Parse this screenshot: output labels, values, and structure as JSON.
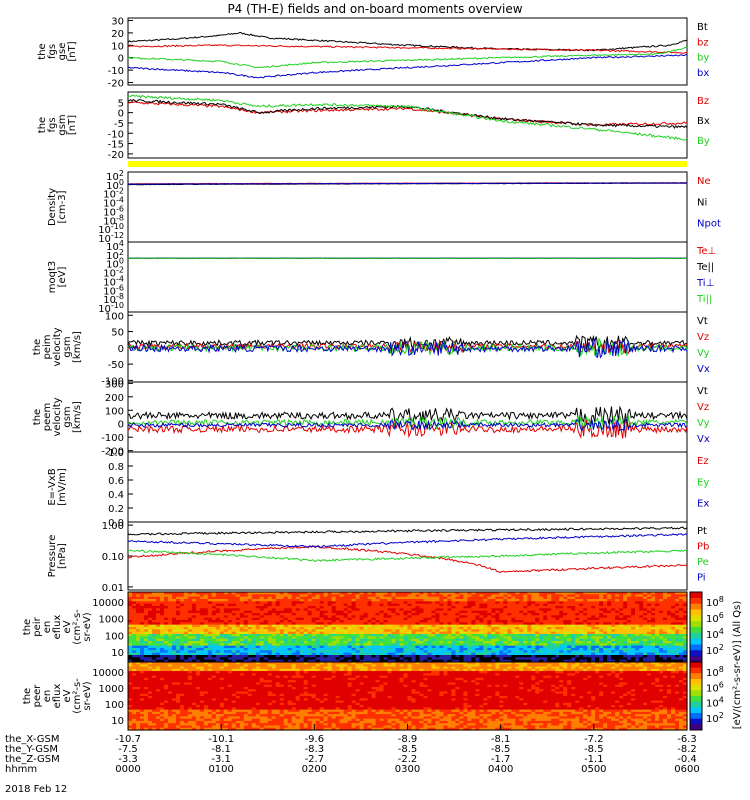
{
  "title": "P4 (TH-E) fields and on-board moments overview",
  "date_label": "2018 Feb 12",
  "colors": {
    "black": "#000000",
    "red": "#e00000",
    "green": "#20d020",
    "blue": "#0000c8",
    "yellow": "#ffff00"
  },
  "chart_data": [
    {
      "type": "line",
      "id": "fgs_gse",
      "ylabel": [
        "the",
        "fgs",
        "gse",
        "[nT]"
      ],
      "yticks": [
        -20,
        -10,
        0,
        10,
        20,
        30
      ],
      "ylim": [
        -22,
        32
      ],
      "series": [
        {
          "name": "Bt",
          "color": "black",
          "points": [
            [
              0,
              13
            ],
            [
              0.5,
              15
            ],
            [
              1.0,
              18
            ],
            [
              1.2,
              20
            ],
            [
              1.5,
              16
            ],
            [
              2,
              14
            ],
            [
              3,
              10
            ],
            [
              4,
              7
            ],
            [
              5,
              6
            ],
            [
              5.8,
              10
            ],
            [
              6,
              14
            ]
          ]
        },
        {
          "name": "bz",
          "color": "red",
          "points": [
            [
              0,
              9
            ],
            [
              1,
              10
            ],
            [
              2,
              9
            ],
            [
              3,
              8
            ],
            [
              4,
              7
            ],
            [
              5,
              6
            ],
            [
              6,
              4
            ]
          ]
        },
        {
          "name": "by",
          "color": "green",
          "points": [
            [
              0,
              0
            ],
            [
              1,
              -3
            ],
            [
              1.4,
              -8
            ],
            [
              2,
              -4
            ],
            [
              3,
              -2
            ],
            [
              4,
              0
            ],
            [
              5,
              2
            ],
            [
              5.7,
              3
            ],
            [
              6,
              8
            ]
          ]
        },
        {
          "name": "bx",
          "color": "blue",
          "points": [
            [
              0,
              -8
            ],
            [
              0.5,
              -10
            ],
            [
              1,
              -12
            ],
            [
              1.4,
              -16
            ],
            [
              2,
              -12
            ],
            [
              3,
              -8
            ],
            [
              4,
              -4
            ],
            [
              5,
              0
            ],
            [
              6,
              2
            ]
          ]
        }
      ]
    },
    {
      "type": "line",
      "id": "fgs_gsm",
      "ylabel": [
        "the",
        "fgs",
        "gsm",
        "[nT]"
      ],
      "yticks": [
        -20,
        -15,
        -10,
        -5,
        0,
        5
      ],
      "ylim": [
        -22,
        10
      ],
      "series": [
        {
          "name": "Bz",
          "color": "red",
          "points": [
            [
              0,
              5
            ],
            [
              1,
              3
            ],
            [
              1.4,
              0
            ],
            [
              2,
              1
            ],
            [
              3,
              2
            ],
            [
              4,
              -3
            ],
            [
              5,
              -6
            ],
            [
              6,
              -5
            ]
          ]
        },
        {
          "name": "Bx",
          "color": "black",
          "points": [
            [
              0,
              6
            ],
            [
              1,
              4
            ],
            [
              1.4,
              0
            ],
            [
              2,
              2
            ],
            [
              3,
              3
            ],
            [
              4,
              -3
            ],
            [
              5,
              -6
            ],
            [
              6,
              -7
            ]
          ]
        },
        {
          "name": "By",
          "color": "green",
          "points": [
            [
              0,
              8
            ],
            [
              1,
              6
            ],
            [
              1.4,
              3
            ],
            [
              2,
              4
            ],
            [
              3,
              3
            ],
            [
              4,
              -4
            ],
            [
              5,
              -8
            ],
            [
              6,
              -13
            ]
          ]
        }
      ]
    },
    {
      "type": "line",
      "id": "density",
      "log": true,
      "ylabel": [
        "Density",
        "[cm-3]"
      ],
      "yticks_labels": [
        "10^2",
        "10^0",
        "10^-2",
        "10^-4",
        "10^-6",
        "10^-8",
        "10^-10",
        "10^-12"
      ],
      "ylim_exp": [
        -13,
        2
      ],
      "series": [
        {
          "name": "Ne",
          "color": "red",
          "points": [
            [
              0,
              0.3
            ],
            [
              6,
              0.5
            ]
          ]
        },
        {
          "name": "Ni",
          "color": "black",
          "points": [
            [
              0,
              0.2
            ],
            [
              6,
              0.4
            ]
          ]
        },
        {
          "name": "Npot",
          "color": "blue",
          "points": [
            [
              0,
              0.25
            ],
            [
              6,
              0.45
            ]
          ]
        }
      ]
    },
    {
      "type": "line",
      "id": "temperature",
      "log": true,
      "ylabel": [
        "moqt3",
        "[eV]"
      ],
      "yticks_labels": [
        "10^4",
        "10^2",
        "10^0",
        "10^-2",
        "10^-4",
        "10^-6",
        "10^-8",
        "10^-10"
      ],
      "ylim_exp": [
        -11,
        4
      ],
      "series": [
        {
          "name": "Te⊥",
          "color": "red",
          "points": [
            [
              0,
              3.3
            ],
            [
              6,
              3.2
            ]
          ]
        },
        {
          "name": "Te||",
          "color": "black",
          "points": [
            [
              0,
              3.5
            ],
            [
              6,
              3.4
            ]
          ]
        },
        {
          "name": "Ti⊥",
          "color": "blue",
          "points": [
            [
              0,
              3.6
            ],
            [
              6,
              3.4
            ]
          ]
        },
        {
          "name": "Ti||",
          "color": "green",
          "points": [
            [
              0,
              3.4
            ],
            [
              6,
              3.2
            ]
          ]
        }
      ]
    },
    {
      "type": "line",
      "id": "peim_velocity",
      "ylabel": [
        "the",
        "peim",
        "velocity",
        "gsm",
        "[km/s]"
      ],
      "yticks": [
        -100,
        -50,
        0,
        50,
        100
      ],
      "ylim": [
        -105,
        110
      ],
      "series": [
        {
          "name": "Vt",
          "color": "black",
          "base": 15,
          "amp": 8
        },
        {
          "name": "Vz",
          "color": "red",
          "base": 5,
          "amp": 8
        },
        {
          "name": "Vy",
          "color": "green",
          "base": 0,
          "amp": 10
        },
        {
          "name": "Vx",
          "color": "blue",
          "base": -2,
          "amp": 10
        }
      ]
    },
    {
      "type": "line",
      "id": "peem_velocity",
      "ylabel": [
        "the",
        "peem",
        "velocity",
        "gsm",
        "[km/s]"
      ],
      "yticks": [
        -200,
        -100,
        0,
        100,
        200,
        300
      ],
      "ylim": [
        -210,
        310
      ],
      "series": [
        {
          "name": "Vt",
          "color": "black",
          "base": 60,
          "amp": 25
        },
        {
          "name": "Vz",
          "color": "red",
          "base": -40,
          "amp": 25
        },
        {
          "name": "Vy",
          "color": "green",
          "base": 10,
          "amp": 20
        },
        {
          "name": "Vx",
          "color": "blue",
          "base": -10,
          "amp": 15
        }
      ]
    },
    {
      "type": "line",
      "id": "efield",
      "ylabel": [
        "E=-VxB",
        "[mV/m]"
      ],
      "yticks_str": [
        "1.0",
        "0.8",
        "0.6",
        "0.4",
        "0.2",
        "0.0"
      ],
      "ylim": [
        0,
        1
      ],
      "series": [
        {
          "name": "Ez",
          "color": "red"
        },
        {
          "name": "Ey",
          "color": "green"
        },
        {
          "name": "Ex",
          "color": "blue"
        }
      ]
    },
    {
      "type": "line",
      "id": "pressure",
      "log": true,
      "ylabel": [
        "Pressure",
        "[nPa]"
      ],
      "yticks_str": [
        "1.00",
        "0.10",
        "0.01"
      ],
      "ylim_exp": [
        -2.1,
        0.1
      ],
      "series": [
        {
          "name": "Pt",
          "color": "black",
          "points": [
            [
              0,
              0.5
            ],
            [
              6,
              0.8
            ]
          ]
        },
        {
          "name": "Pb",
          "color": "red",
          "points": [
            [
              0,
              0.09
            ],
            [
              2,
              0.2
            ],
            [
              4,
              0.03
            ],
            [
              6,
              0.05
            ]
          ]
        },
        {
          "name": "Pe",
          "color": "green",
          "points": [
            [
              0,
              0.15
            ],
            [
              2,
              0.07
            ],
            [
              4,
              0.1
            ],
            [
              6,
              0.15
            ]
          ]
        },
        {
          "name": "Pi",
          "color": "blue",
          "points": [
            [
              0,
              0.3
            ],
            [
              2,
              0.2
            ],
            [
              4,
              0.35
            ],
            [
              6,
              0.5
            ]
          ]
        }
      ]
    },
    {
      "type": "heatmap",
      "id": "peir_spec",
      "ylabel": [
        "the",
        "peir",
        "en",
        "eflux",
        "eV",
        "(cm^2-s-",
        "sr-eV)"
      ],
      "yticks_str": [
        "10000",
        "1000",
        "100",
        "10"
      ],
      "colorbar_labels": [
        "10^8",
        "10^6",
        "10^4",
        "10^2"
      ]
    },
    {
      "type": "heatmap",
      "id": "peer_spec",
      "ylabel": [
        "the",
        "peer",
        "en",
        "eflux",
        "eV",
        "(cm^2-s-",
        "sr-eV)"
      ],
      "yticks_str": [
        "10000",
        "1000",
        "100",
        "10"
      ],
      "colorbar_labels": [
        "10^8",
        "10^6",
        "10^4",
        "10^2"
      ]
    }
  ],
  "colorbar_title": "[eV/(cm^2-s-sr-eV)] (All Qs)",
  "xaxis": {
    "rows": [
      {
        "label": "the_X-GSM",
        "values": [
          "-10.7",
          "-10.1",
          "-9.6",
          "-8.9",
          "-8.1",
          "-7.2",
          "-6.3"
        ]
      },
      {
        "label": "the_Y-GSM",
        "values": [
          "-7.5",
          "-8.1",
          "-8.3",
          "-8.5",
          "-8.5",
          "-8.5",
          "-8.2"
        ]
      },
      {
        "label": "the_Z-GSM",
        "values": [
          "-3.3",
          "-3.1",
          "-2.7",
          "-2.2",
          "-1.7",
          "-1.1",
          "-0.4"
        ]
      },
      {
        "label": "hhmm",
        "values": [
          "0000",
          "0100",
          "0200",
          "0300",
          "0400",
          "0500",
          "0600"
        ]
      }
    ]
  }
}
